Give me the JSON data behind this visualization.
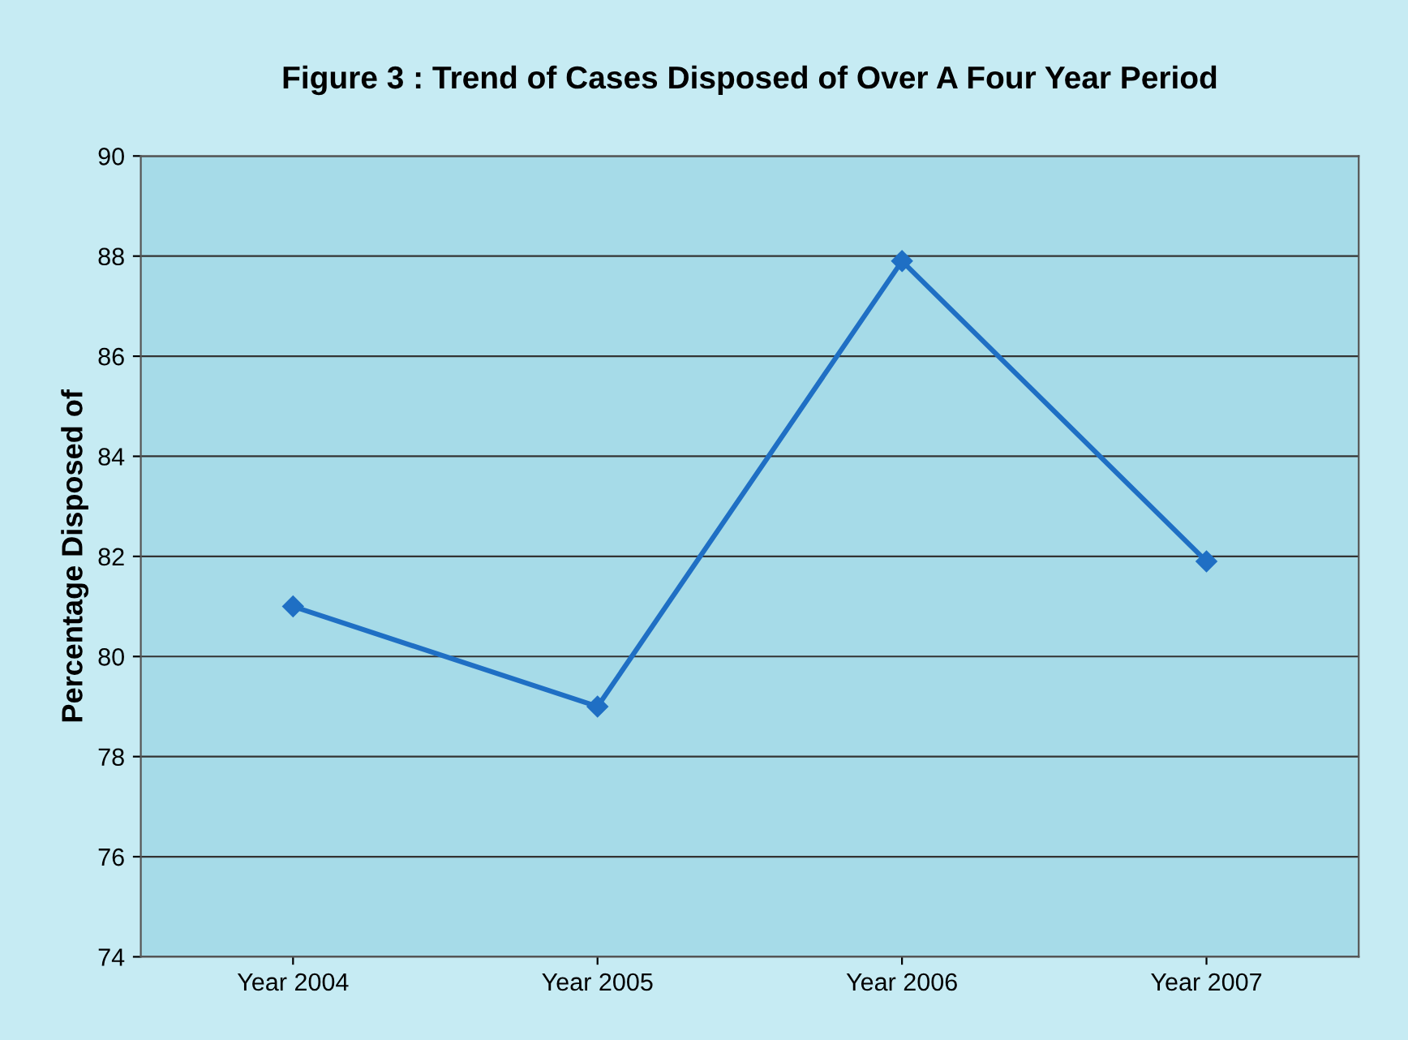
{
  "chart_data": {
    "type": "line",
    "title": "Figure 3 : Trend of Cases Disposed of Over A Four Year Period",
    "ylabel": "Percentage Disposed of",
    "categories": [
      "Year 2004",
      "Year 2005",
      "Year 2006",
      "Year 2007"
    ],
    "series": [
      {
        "color": "#1f6fc4",
        "values": [
          81.0,
          79.0,
          87.9,
          81.9
        ]
      }
    ],
    "ylim": [
      74,
      90
    ],
    "yticks": [
      74,
      76,
      78,
      80,
      82,
      84,
      86,
      88,
      90
    ],
    "grid": "y",
    "marker": "diamond",
    "line_style": "solid"
  }
}
